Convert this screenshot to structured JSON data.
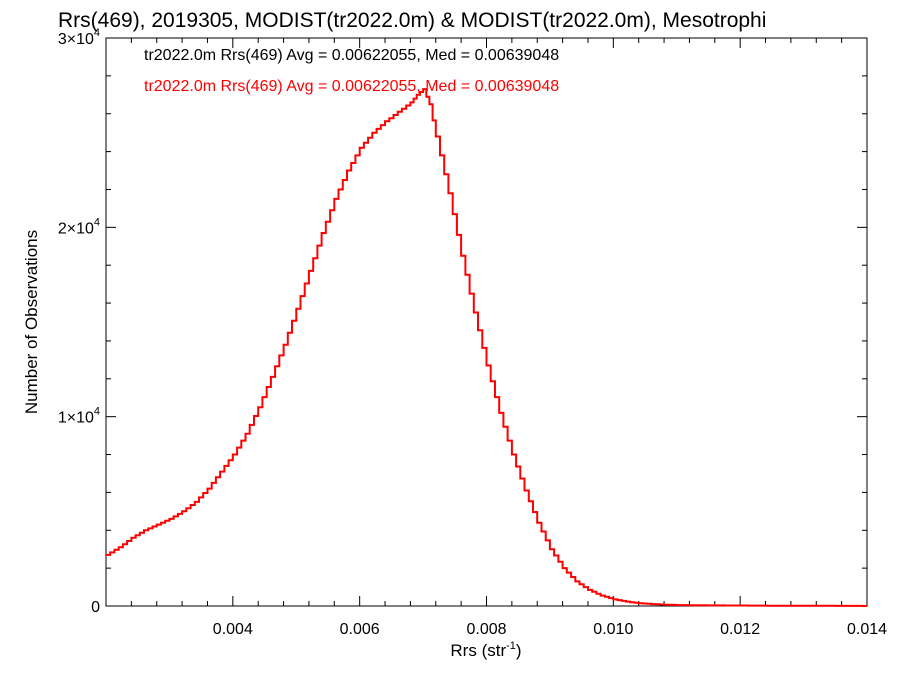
{
  "chart_data": {
    "type": "line",
    "title": "Rrs(469), 2019305, MODIST(tr2022.0m) & MODIST(tr2022.0m), Mesotrophi",
    "xlabel": "Rrs (str",
    "xlabel_sup": "-1",
    "xlabel_suffix": ")",
    "ylabel": "Number of Observations",
    "xlim": [
      0.002,
      0.014
    ],
    "ylim": [
      0,
      30000
    ],
    "grid": false,
    "legend_position": "top-left",
    "x_ticks": [
      {
        "value": 0.004,
        "label": "0.004"
      },
      {
        "value": 0.006,
        "label": "0.006"
      },
      {
        "value": 0.008,
        "label": "0.008"
      },
      {
        "value": 0.01,
        "label": "0.010"
      },
      {
        "value": 0.012,
        "label": "0.012"
      },
      {
        "value": 0.014,
        "label": "0.014"
      }
    ],
    "y_ticks": [
      {
        "value": 0,
        "mantissa": "0",
        "exp": ""
      },
      {
        "value": 10000,
        "mantissa": "1×10",
        "exp": "4"
      },
      {
        "value": 20000,
        "mantissa": "2×10",
        "exp": "4"
      },
      {
        "value": 30000,
        "mantissa": "3×10",
        "exp": "4"
      }
    ],
    "legend": [
      {
        "text": "tr2022.0m Rrs(469) Avg = 0.00622055, Med = 0.00639048",
        "color": "#000000"
      },
      {
        "text": "tr2022.0m Rrs(469) Avg = 0.00622055, Med = 0.00639048",
        "color": "#ff0000"
      }
    ],
    "series": [
      {
        "color": "#ff0000",
        "x": [
          0.002,
          0.0022,
          0.0024,
          0.0026,
          0.0028,
          0.003,
          0.0032,
          0.0034,
          0.0036,
          0.0038,
          0.004,
          0.0042,
          0.0044,
          0.0046,
          0.0048,
          0.005,
          0.0052,
          0.0054,
          0.0056,
          0.0058,
          0.006,
          0.0062,
          0.0064,
          0.0066,
          0.0068,
          0.0069,
          0.007,
          0.0071,
          0.0072,
          0.0074,
          0.0076,
          0.0078,
          0.008,
          0.0082,
          0.0084,
          0.0086,
          0.0088,
          0.009,
          0.0092,
          0.0094,
          0.0096,
          0.0098,
          0.01,
          0.0102,
          0.0104,
          0.0106,
          0.0108,
          0.011,
          0.0114,
          0.012,
          0.0126,
          0.0132,
          0.0138,
          0.014
        ],
        "y": [
          2700,
          3100,
          3600,
          4000,
          4300,
          4600,
          5000,
          5500,
          6200,
          7100,
          8000,
          9100,
          10500,
          12100,
          13800,
          15700,
          17700,
          19700,
          21500,
          23000,
          24200,
          25000,
          25600,
          26100,
          26600,
          27000,
          27300,
          26500,
          24800,
          21800,
          18500,
          15500,
          12700,
          10200,
          8000,
          6100,
          4400,
          3000,
          2000,
          1300,
          850,
          550,
          350,
          230,
          150,
          100,
          70,
          50,
          35,
          25,
          15,
          10,
          5,
          0
        ]
      }
    ]
  }
}
